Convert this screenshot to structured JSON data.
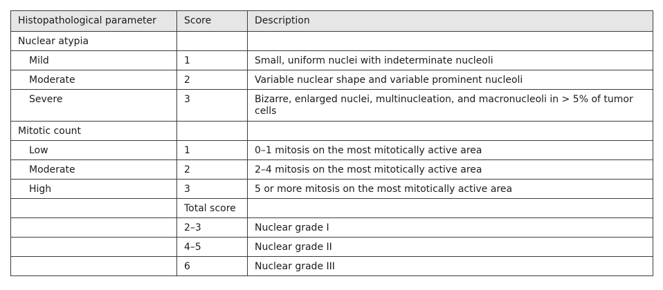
{
  "table": {
    "headers": [
      "Histopathological parameter",
      "Score",
      "Description"
    ],
    "rows": [
      {
        "parameter": "Nuclear atypia",
        "score": "",
        "description": "",
        "indent": false
      },
      {
        "parameter": "Mild",
        "score": "1",
        "description": "Small, uniform nuclei with indeterminate nucleoli",
        "indent": true
      },
      {
        "parameter": "Moderate",
        "score": "2",
        "description": "Variable nuclear shape and variable prominent nucleoli",
        "indent": true
      },
      {
        "parameter": "Severe",
        "score": "3",
        "description": "Bizarre, enlarged nuclei, multinucleation, and macronucleoli in > 5% of tumor cells",
        "indent": true
      },
      {
        "parameter": "Mitotic count",
        "score": "",
        "description": "",
        "indent": false
      },
      {
        "parameter": "Low",
        "score": "1",
        "description": "0–1 mitosis on the most mitotically active area",
        "indent": true
      },
      {
        "parameter": "Moderate",
        "score": "2",
        "description": "2–4 mitosis on the most mitotically active area",
        "indent": true
      },
      {
        "parameter": "High",
        "score": "3",
        "description": "5 or more mitosis on the most mitotically active area",
        "indent": true
      },
      {
        "parameter": "",
        "score": "Total score",
        "description": "",
        "indent": false
      },
      {
        "parameter": "",
        "score": "2–3",
        "description": "Nuclear grade I",
        "indent": false
      },
      {
        "parameter": "",
        "score": "4–5",
        "description": "Nuclear grade II",
        "indent": false
      },
      {
        "parameter": "",
        "score": "6",
        "description": "Nuclear grade III",
        "indent": false
      }
    ]
  }
}
